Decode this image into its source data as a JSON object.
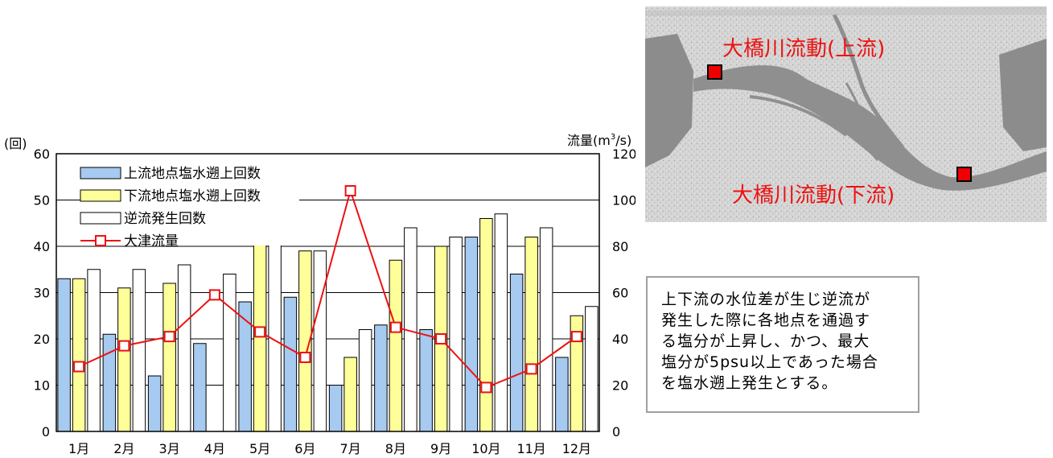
{
  "chart_data": {
    "type": "bar",
    "categories": [
      "1月",
      "2月",
      "3月",
      "4月",
      "5月",
      "6月",
      "7月",
      "8月",
      "9月",
      "10月",
      "11月",
      "12月"
    ],
    "left_axis": {
      "unit": "(回)",
      "ylim": [
        0,
        60
      ],
      "ticks": [
        "0",
        "10",
        "20",
        "30",
        "40",
        "50",
        "60"
      ]
    },
    "right_axis": {
      "unit": "流量(m³/s)",
      "ylim": [
        0,
        120
      ],
      "ticks": [
        "0",
        "20",
        "40",
        "60",
        "80",
        "100",
        "120"
      ]
    },
    "grid": true,
    "legend_position": "top-left",
    "series": [
      {
        "name": "上流地点塩水遡上回数",
        "kind": "bar",
        "axis": "left",
        "color": "#a6caf0",
        "values": [
          33,
          21,
          12,
          19,
          28,
          29,
          10,
          23,
          22,
          42,
          34,
          16
        ]
      },
      {
        "name": "下流地点塩水遡上回数",
        "kind": "bar",
        "axis": "left",
        "color": "#ffff99",
        "values": [
          33,
          31,
          32,
          0,
          41,
          39,
          16,
          37,
          40,
          46,
          42,
          25
        ]
      },
      {
        "name": "逆流発生回数",
        "kind": "bar",
        "axis": "left",
        "color": "#ffffff",
        "values": [
          35,
          35,
          36,
          34,
          41,
          39,
          22,
          44,
          42,
          47,
          44,
          27
        ]
      },
      {
        "name": "大津流量",
        "kind": "line",
        "axis": "right",
        "color": "#ee1111",
        "values": [
          28,
          37,
          41,
          59,
          43,
          32,
          104,
          45,
          40,
          19,
          27,
          41
        ]
      }
    ]
  },
  "map": {
    "label_upstream": "大橋川流動(上流)",
    "label_downstream": "大橋川流動(下流)"
  },
  "note": {
    "lines": [
      "上下流の水位差が生じ逆流が",
      "発生した際に各地点を通過す",
      "る塩分が上昇し、かつ、最大",
      "塩分が5psu以上であった場合",
      "を塩水遡上発生とする。"
    ]
  }
}
